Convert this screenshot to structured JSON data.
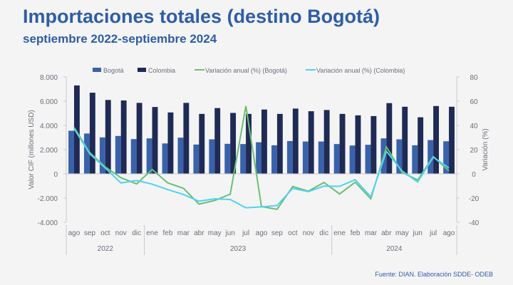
{
  "title": "Importaciones totales (destino Bogotá)",
  "subtitle": "septiembre 2022-septiembre  2024",
  "source": "Fuente: DIAN. Elaboración SDDE- ODEB",
  "chart_data": {
    "type": "bar+line",
    "categories": [
      "ago",
      "sep",
      "oct",
      "nov",
      "dic",
      "ene",
      "feb",
      "mar",
      "abr",
      "may",
      "jun",
      "jul",
      "ago",
      "sep",
      "oct",
      "nov",
      "dic",
      "ene",
      "feb",
      "mar",
      "abr",
      "may",
      "jun",
      "jul",
      "ago"
    ],
    "years": [
      {
        "label": "2022",
        "count": 5
      },
      {
        "label": "2023",
        "count": 12
      },
      {
        "label": "2024",
        "count": 8
      }
    ],
    "series": [
      {
        "name": "Bogotá",
        "type": "bar",
        "axis": "left",
        "color": "#3a62ab",
        "values": [
          3560,
          3330,
          3010,
          3130,
          2870,
          2930,
          2510,
          2990,
          2420,
          2850,
          2480,
          2460,
          2610,
          2360,
          2710,
          2670,
          2670,
          2460,
          2340,
          2400,
          2930,
          2850,
          2360,
          2790,
          2690
        ]
      },
      {
        "name": "Colombia",
        "type": "bar",
        "axis": "left",
        "color": "#1f2a55",
        "values": [
          7300,
          6700,
          6100,
          6060,
          5860,
          5520,
          5070,
          5860,
          4950,
          5430,
          5030,
          4950,
          5310,
          4950,
          5390,
          5170,
          5270,
          4950,
          4830,
          4770,
          5840,
          5540,
          4670,
          5600,
          5540
        ]
      },
      {
        "name": "Variación anual (%) (Bogotá)",
        "type": "line",
        "axis": "right",
        "color": "#6cbf72",
        "values": [
          38.4,
          17.6,
          5.7,
          -3.2,
          -8.3,
          3.6,
          -7.5,
          -11.9,
          -25,
          -22,
          -16.8,
          56,
          -27,
          -29.3,
          -10.5,
          -14.3,
          -7.1,
          -16.6,
          -6.9,
          -20.6,
          22.2,
          1.2,
          -5.1,
          14.3,
          2.4
        ]
      },
      {
        "name": "Variación anual (%) (Colombia)",
        "type": "line",
        "axis": "right",
        "color": "#4fd2f5",
        "values": [
          37.4,
          16.6,
          4.8,
          -7.5,
          -5.5,
          -8.5,
          -13,
          -17,
          -22.6,
          -20.6,
          -21.2,
          -28,
          -27.3,
          -26.1,
          -12,
          -14.7,
          -10.1,
          -10.3,
          -4.8,
          -19,
          18.6,
          2.4,
          -6.7,
          13.7,
          4.8
        ]
      }
    ],
    "ylabel": "Valor CIF (millones USD)",
    "ylabel_right": "Variación (%)",
    "ylim": [
      -4000,
      8000
    ],
    "yticks": [
      "-4.000",
      "-2.000",
      "0",
      "2.000",
      "4.000",
      "6.000",
      "8.000"
    ],
    "ylim_right": [
      -40,
      80
    ],
    "yticks_right": [
      "-40",
      "-20",
      "0",
      "20",
      "40",
      "60",
      "80"
    ],
    "legend": "top"
  }
}
